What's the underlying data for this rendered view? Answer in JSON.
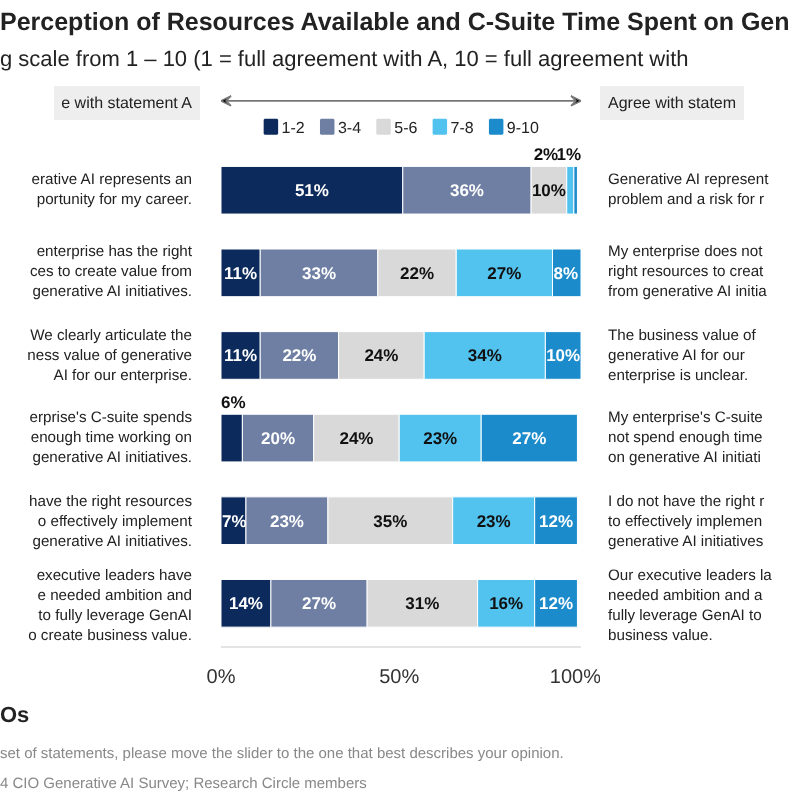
{
  "chart_data": {
    "type": "bar",
    "orientation": "horizontal",
    "stacked": true,
    "title": "Perception of Resources Available and C-Suite Time Spent on Gen",
    "subtitle": "g scale from 1 – 10 (1 = full agreement with A, 10 = full agreement with",
    "categories": [
      "erative AI represents an\nportunity for my career.",
      "enterprise has the right\nces to create value from\ngenerative AI initiatives.",
      "We clearly articulate the\nness value of generative\nAI for our enterprise.",
      "erprise's C-suite spends\nenough time working on\ngenerative AI initiatives.",
      "have the right resources\no effectively implement\ngenerative AI initiatives.",
      "executive leaders have\ne needed ambition and\nto fully leverage GenAI\no create business value."
    ],
    "series": [
      {
        "name": "1-2",
        "color": "#0c2a5b",
        "values": [
          51,
          11,
          11,
          6,
          7,
          14
        ],
        "value_labels": [
          "51%",
          "11%",
          "11%",
          "6%",
          "7%",
          "14%"
        ]
      },
      {
        "name": "3-4",
        "color": "#6e7fa3",
        "values": [
          36,
          33,
          22,
          20,
          23,
          27
        ],
        "value_labels": [
          "36%",
          "33%",
          "22%",
          "20%",
          "23%",
          "27%"
        ]
      },
      {
        "name": "5-6",
        "color": "#d9d9d9",
        "values": [
          10,
          22,
          24,
          24,
          35,
          31
        ],
        "value_labels": [
          "10%",
          "22%",
          "24%",
          "24%",
          "35%",
          "31%"
        ]
      },
      {
        "name": "7-8",
        "color": "#52c2ef",
        "values": [
          2,
          27,
          34,
          23,
          23,
          16
        ],
        "value_labels": [
          "2%",
          "27%",
          "34%",
          "23%",
          "23%",
          "16%"
        ]
      },
      {
        "name": "9-10",
        "color": "#1b8bcb",
        "values": [
          1,
          8,
          10,
          27,
          12,
          12
        ],
        "value_labels": [
          "1%",
          "8%",
          "10%",
          "27%",
          "12%",
          "12%"
        ]
      }
    ],
    "xlim": [
      0,
      101
    ],
    "xticks": [
      {
        "value": 0,
        "label": "0%"
      },
      {
        "value": 50,
        "label": "50%"
      },
      {
        "value": 100,
        "label": "100%"
      }
    ],
    "grid": false,
    "legend": "top",
    "annotations": [
      "e with statement A",
      "Agree with statem",
      "Generative AI represent\nproblem and a risk for r",
      "My enterprise does not\nright resources to creat\nfrom generative AI initia",
      "The business value of\ngenerative AI for our\nenterprise is unclear.",
      "My enterprise's C-suite\nnot spend enough time\non generative AI initiati",
      "I do not have the right r\nto effectively implemen\ngenerative AI initiatives",
      "Our executive leaders la\nneeded ambition and a\nfully leverage GenAI to\nbusiness value.",
      "Os",
      "set of statements, please move the slider to the one that best describes your opinion.",
      "4 CIO Generative AI Survey; Research Circle members"
    ]
  }
}
